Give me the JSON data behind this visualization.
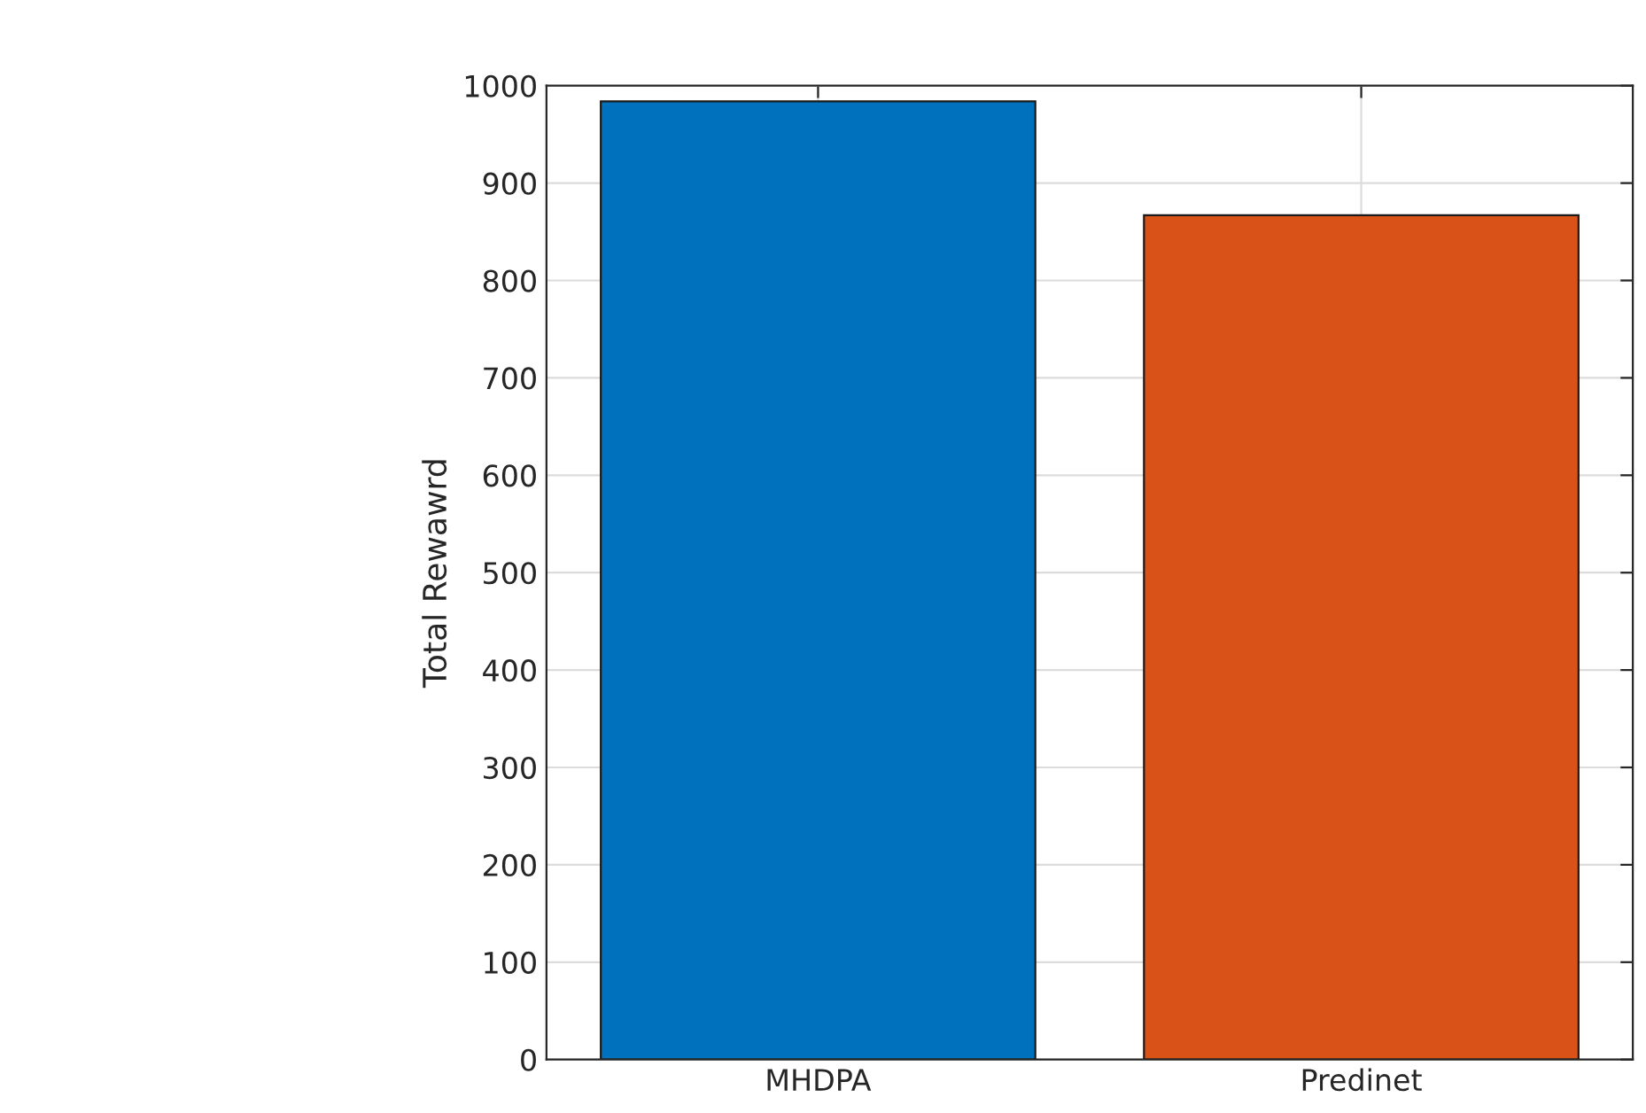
{
  "chart_data": {
    "type": "bar",
    "ylabel": "Total Rewawrd",
    "categories": [
      "MHDPA",
      "Predinet"
    ],
    "values": [
      984,
      867
    ],
    "colors": [
      "#0072bd",
      "#d95319"
    ],
    "ylim": [
      0,
      1000
    ],
    "yticks": [
      0,
      100,
      200,
      300,
      400,
      500,
      600,
      700,
      800,
      900,
      1000
    ],
    "grid": true
  }
}
